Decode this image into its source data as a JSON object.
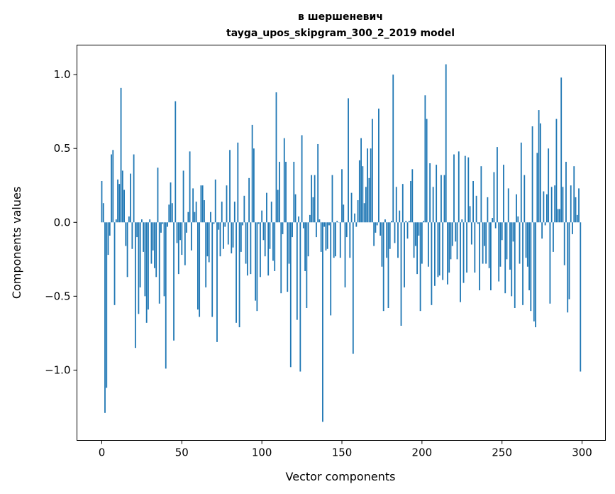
{
  "chart_data": {
    "type": "bar",
    "title": [
      "в шершеневич",
      "tayga_upos_skipgram_300_2_2019 model"
    ],
    "xlabel": "Vector components",
    "ylabel": "Components values",
    "xlim": [
      -15.5,
      314.6
    ],
    "ylim": [
      -1.476,
      1.2
    ],
    "xticks": [
      0,
      50,
      100,
      150,
      200,
      250,
      300
    ],
    "yticks": [
      1.0,
      0.5,
      0.0,
      -0.5,
      -1.0
    ],
    "ytick_labels": [
      "1.0",
      "0.5",
      "0.0",
      "−0.5",
      "−1.0"
    ],
    "grid": false,
    "color": "#1f77b4",
    "values": [
      0.28,
      0.13,
      -1.29,
      -1.12,
      -0.22,
      -0.09,
      0.46,
      0.49,
      -0.56,
      0.02,
      0.29,
      0.26,
      0.91,
      0.35,
      0.22,
      -0.16,
      -0.37,
      0.04,
      0.33,
      -0.18,
      0.46,
      -0.85,
      -0.1,
      -0.62,
      -0.44,
      0.02,
      -0.2,
      -0.5,
      -0.68,
      -0.59,
      0.02,
      -0.28,
      -0.19,
      -0.31,
      -0.37,
      0.37,
      -0.55,
      -0.07,
      -0.01,
      -0.5,
      -0.99,
      -0.03,
      0.12,
      0.27,
      0.13,
      -0.8,
      0.82,
      -0.14,
      -0.35,
      -0.12,
      -0.22,
      0.35,
      -0.29,
      -0.07,
      0.07,
      0.48,
      -0.19,
      0.23,
      0.07,
      0.14,
      -0.59,
      -0.64,
      0.25,
      0.25,
      0.15,
      -0.44,
      -0.23,
      -0.27,
      0.07,
      -0.64,
      -0.01,
      0.29,
      -0.81,
      -0.05,
      -0.23,
      0.14,
      -0.18,
      -0.03,
      0.25,
      -0.15,
      0.49,
      -0.21,
      -0.17,
      0.14,
      -0.68,
      0.54,
      -0.71,
      -0.2,
      -0.02,
      0.18,
      -0.28,
      -0.36,
      0.3,
      -0.35,
      0.66,
      0.5,
      -0.53,
      -0.6,
      -0.01,
      -0.37,
      0.08,
      -0.12,
      -0.23,
      0.2,
      -0.36,
      -0.18,
      0.14,
      -0.26,
      -0.33,
      0.88,
      0.22,
      0.41,
      -0.48,
      -0.08,
      0.57,
      0.41,
      -0.47,
      -0.28,
      -0.98,
      -0.1,
      0.41,
      0.19,
      -0.66,
      0.04,
      -1.01,
      0.59,
      -0.04,
      -0.33,
      -0.58,
      -0.23,
      0.05,
      0.32,
      0.17,
      0.32,
      -0.1,
      0.53,
      0.02,
      -0.2,
      -1.35,
      -0.03,
      -0.19,
      -0.18,
      -0.02,
      -0.63,
      0.32,
      -0.24,
      -0.23,
      0.01,
      0.0,
      -0.24,
      0.36,
      0.12,
      -0.44,
      -0.1,
      0.84,
      -0.24,
      0.2,
      -0.89,
      0.06,
      -0.03,
      0.15,
      0.42,
      0.57,
      0.38,
      0.13,
      0.24,
      0.5,
      0.3,
      0.5,
      0.7,
      -0.16,
      -0.07,
      -0.02,
      0.77,
      -0.09,
      -0.3,
      -0.6,
      0.02,
      -0.24,
      -0.58,
      -0.18,
      0.01,
      1.0,
      -0.14,
      0.24,
      -0.24,
      0.08,
      -0.7,
      0.26,
      -0.44,
      0.01,
      -0.11,
      0.01,
      0.28,
      0.36,
      -0.24,
      -0.16,
      -0.35,
      -0.09,
      -0.6,
      -0.28,
      0.01,
      0.86,
      0.7,
      -0.3,
      0.4,
      -0.56,
      0.24,
      -0.43,
      0.39,
      -0.37,
      -0.36,
      0.32,
      -0.39,
      0.32,
      1.07,
      -0.42,
      -0.34,
      -0.25,
      -0.16,
      0.46,
      -0.13,
      -0.25,
      0.48,
      -0.54,
      0.02,
      -0.41,
      0.45,
      -0.34,
      0.44,
      0.11,
      -0.15,
      0.28,
      -0.34,
      0.18,
      -0.01,
      -0.46,
      0.38,
      -0.28,
      -0.16,
      -0.28,
      0.17,
      -0.31,
      -0.46,
      0.03,
      0.34,
      -0.04,
      0.51,
      -0.4,
      -0.3,
      -0.12,
      0.39,
      -0.48,
      -0.25,
      0.23,
      -0.32,
      -0.5,
      -0.13,
      -0.58,
      0.19,
      0.04,
      -0.28,
      0.54,
      -0.56,
      0.32,
      -0.24,
      -0.3,
      -0.46,
      -0.6,
      0.65,
      -0.67,
      -0.71,
      0.47,
      0.76,
      0.67,
      -0.11,
      0.21,
      -0.02,
      0.19,
      0.5,
      -0.55,
      0.24,
      -0.2,
      0.25,
      0.7,
      0.09,
      0.09,
      0.98,
      0.24,
      -0.29,
      0.41,
      -0.61,
      -0.52,
      0.25,
      -0.08,
      0.38,
      0.17,
      0.05,
      0.23,
      -1.01
    ]
  }
}
